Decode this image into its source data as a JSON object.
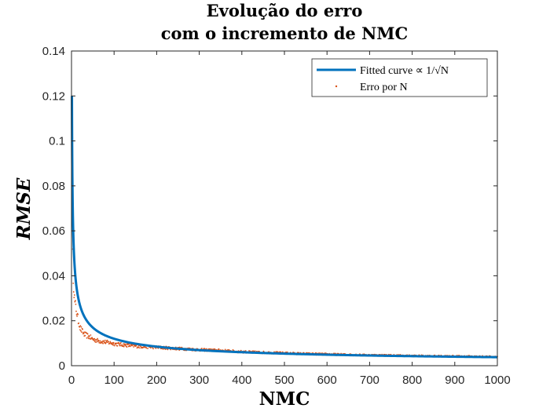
{
  "chart_data": {
    "type": "line",
    "title": [
      "Evolução do erro",
      "com o incremento de NMC"
    ],
    "xlabel": "NMC",
    "ylabel": "RMSE",
    "xlim": [
      0,
      1000
    ],
    "ylim": [
      0,
      0.14
    ],
    "xticks": [
      0,
      100,
      200,
      300,
      400,
      500,
      600,
      700,
      800,
      900,
      1000
    ],
    "yticks": [
      0,
      0.02,
      0.04,
      0.06,
      0.08,
      0.1,
      0.12,
      0.14
    ],
    "xtick_labels": [
      "0",
      "100",
      "200",
      "300",
      "400",
      "500",
      "600",
      "700",
      "800",
      "900",
      "1000"
    ],
    "ytick_labels": [
      "0",
      "0.02",
      "0.04",
      "0.06",
      "0.08",
      "0.1",
      "0.12",
      "0.14"
    ],
    "grid": false,
    "legend_position": "top-right",
    "series": [
      {
        "name": "Fitted curve ∝ 1/√N",
        "kind": "line",
        "color": "#0072BD",
        "model": "a/sqrt(N)",
        "coefficient_a": 0.12,
        "x_range": [
          1,
          1000
        ]
      },
      {
        "name": "Erro por N",
        "kind": "scatter",
        "color": "#D95319",
        "x": [
          1,
          2,
          3,
          4,
          5,
          6,
          7,
          8,
          10,
          12,
          14,
          16,
          18,
          20,
          23,
          26,
          30,
          35,
          40,
          45,
          50,
          60,
          70,
          80,
          90,
          100,
          120,
          140,
          160,
          180,
          200,
          225,
          250,
          275,
          300,
          350,
          400,
          450,
          500,
          550,
          600,
          650,
          700,
          750,
          800,
          850,
          900,
          950,
          1000
        ],
        "y": [
          0.12,
          0.06,
          0.048,
          0.04,
          0.036,
          0.033,
          0.03,
          0.028,
          0.026,
          0.024,
          0.022,
          0.02,
          0.019,
          0.017,
          0.016,
          0.015,
          0.014,
          0.0135,
          0.013,
          0.0125,
          0.0118,
          0.0112,
          0.0108,
          0.0105,
          0.0102,
          0.0098,
          0.0093,
          0.0089,
          0.0086,
          0.0084,
          0.0082,
          0.0079,
          0.0076,
          0.0074,
          0.0071,
          0.0068,
          0.0062,
          0.0059,
          0.0056,
          0.0053,
          0.0051,
          0.0049,
          0.0047,
          0.0046,
          0.0044,
          0.0043,
          0.0042,
          0.0041,
          0.004
        ]
      }
    ]
  }
}
